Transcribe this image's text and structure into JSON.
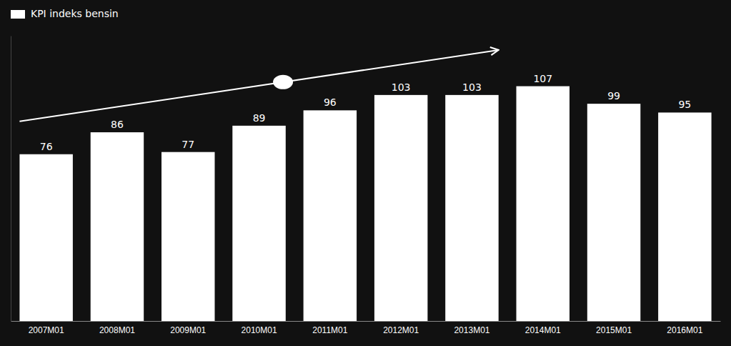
{
  "chart_data": {
    "type": "bar",
    "categories": [
      "2007M01",
      "2008M01",
      "2009M01",
      "2010M01",
      "2011M01",
      "2012M01",
      "2013M01",
      "2014M01",
      "2015M01",
      "2016M01"
    ],
    "series": [
      {
        "name": "KPI indeks bensin",
        "color": "#ffffff",
        "values": [
          76,
          86,
          77,
          89,
          96,
          103,
          103,
          107,
          99,
          95
        ]
      }
    ],
    "ylim": [
      0,
      130
    ],
    "legend": "top-left",
    "data_labels": true,
    "tick_labels": "x",
    "grid": false
  }
}
